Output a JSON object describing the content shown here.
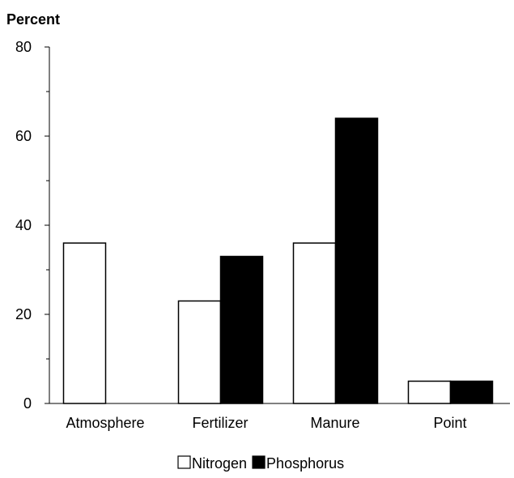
{
  "chart_data": {
    "type": "bar",
    "title": "",
    "xlabel": "",
    "ylabel": "Percent",
    "ylim": [
      0,
      80
    ],
    "yticks": [
      0,
      20,
      40,
      60,
      80
    ],
    "categories": [
      "Atmosphere",
      "Fertilizer",
      "Manure",
      "Point"
    ],
    "series": [
      {
        "name": "Nitrogen",
        "color": "#ffffff",
        "values": [
          36,
          23,
          36,
          5
        ]
      },
      {
        "name": "Phosphorus",
        "color": "#000000",
        "values": [
          null,
          33,
          64,
          5
        ]
      }
    ],
    "legend_position": "bottom-center",
    "grid": false
  }
}
